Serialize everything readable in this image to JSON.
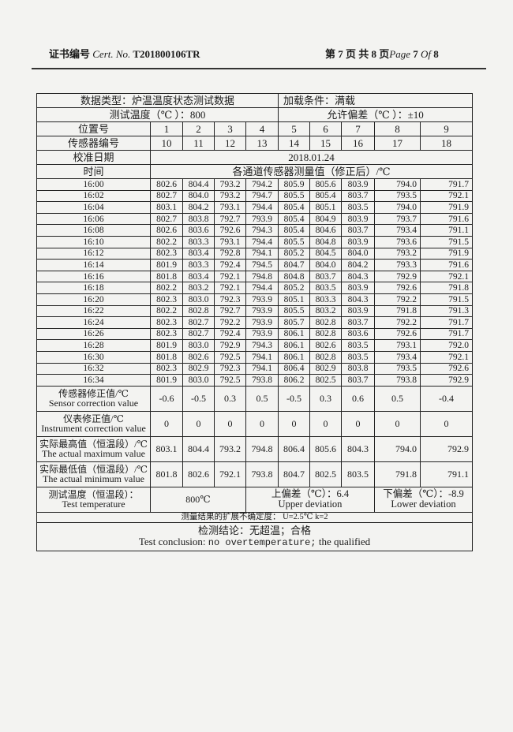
{
  "header": {
    "cert_label_cn": "证书编号",
    "cert_label_en": "Cert. No.",
    "cert_no": "T201800106TR",
    "page_info_cn_1": "第",
    "page_current": "7",
    "page_info_cn_2": "页 共",
    "page_total": "8",
    "page_info_cn_3": "页",
    "page_label_en": "Page",
    "of_label": "Of"
  },
  "table": {
    "data_type": "数据类型：炉温温度状态测试数据",
    "load_condition": "加载条件：满载",
    "test_temp": "测试温度（℃ ）：800",
    "tolerance": "允许偏差（℃ ）：±10",
    "position_label": "位置号",
    "positions": [
      "1",
      "2",
      "3",
      "4",
      "5",
      "6",
      "7",
      "8",
      "9"
    ],
    "sensor_label": "传感器编号",
    "sensors": [
      "10",
      "11",
      "12",
      "13",
      "14",
      "15",
      "16",
      "17",
      "18"
    ],
    "calib_date_label": "校准日期",
    "calib_date": "2018.01.24",
    "time_label": "时间",
    "measure_label": "各通道传感器测量值（修正后）/℃",
    "rows": [
      {
        "time": "16:00",
        "v": [
          "802.6",
          "804.4",
          "793.2",
          "794.2",
          "805.9",
          "805.6",
          "803.9",
          "794.0",
          "791.7"
        ]
      },
      {
        "time": "16:02",
        "v": [
          "802.7",
          "804.0",
          "793.2",
          "794.7",
          "805.5",
          "805.4",
          "803.7",
          "793.5",
          "792.1"
        ]
      },
      {
        "time": "16:04",
        "v": [
          "803.1",
          "804.2",
          "793.1",
          "794.4",
          "805.4",
          "805.1",
          "803.5",
          "794.0",
          "791.9"
        ]
      },
      {
        "time": "16:06",
        "v": [
          "802.7",
          "803.8",
          "792.7",
          "793.9",
          "805.4",
          "804.9",
          "803.9",
          "793.7",
          "791.6"
        ]
      },
      {
        "time": "16:08",
        "v": [
          "802.6",
          "803.6",
          "792.6",
          "794.3",
          "805.4",
          "804.6",
          "803.7",
          "793.4",
          "791.1"
        ]
      },
      {
        "time": "16:10",
        "v": [
          "802.2",
          "803.3",
          "793.1",
          "794.4",
          "805.5",
          "804.8",
          "803.9",
          "793.6",
          "791.5"
        ]
      },
      {
        "time": "16:12",
        "v": [
          "802.3",
          "803.4",
          "792.8",
          "794.1",
          "805.2",
          "804.5",
          "804.0",
          "793.2",
          "791.9"
        ]
      },
      {
        "time": "16:14",
        "v": [
          "801.9",
          "803.3",
          "792.4",
          "794.5",
          "804.7",
          "804.0",
          "804.2",
          "793.3",
          "791.6"
        ]
      },
      {
        "time": "16:16",
        "v": [
          "801.8",
          "803.4",
          "792.1",
          "794.8",
          "804.8",
          "803.7",
          "804.3",
          "792.9",
          "792.1"
        ]
      },
      {
        "time": "16:18",
        "v": [
          "802.2",
          "803.2",
          "792.1",
          "794.4",
          "805.2",
          "803.5",
          "803.9",
          "792.6",
          "791.8"
        ]
      },
      {
        "time": "16:20",
        "v": [
          "802.3",
          "803.0",
          "792.3",
          "793.9",
          "805.1",
          "803.3",
          "804.3",
          "792.2",
          "791.5"
        ]
      },
      {
        "time": "16:22",
        "v": [
          "802.2",
          "802.8",
          "792.7",
          "793.9",
          "805.5",
          "803.2",
          "803.9",
          "791.8",
          "791.3"
        ]
      },
      {
        "time": "16:24",
        "v": [
          "802.3",
          "802.7",
          "792.2",
          "793.9",
          "805.7",
          "802.8",
          "803.7",
          "792.2",
          "791.7"
        ]
      },
      {
        "time": "16:26",
        "v": [
          "802.3",
          "802.7",
          "792.4",
          "793.9",
          "806.1",
          "802.8",
          "803.6",
          "792.6",
          "791.7"
        ]
      },
      {
        "time": "16:28",
        "v": [
          "801.9",
          "803.0",
          "792.9",
          "794.3",
          "806.1",
          "802.6",
          "803.5",
          "793.1",
          "792.0"
        ]
      },
      {
        "time": "16:30",
        "v": [
          "801.8",
          "802.6",
          "792.5",
          "794.1",
          "806.1",
          "802.8",
          "803.5",
          "793.4",
          "792.1"
        ]
      },
      {
        "time": "16:32",
        "v": [
          "802.3",
          "802.9",
          "792.3",
          "794.1",
          "806.4",
          "802.9",
          "803.8",
          "793.5",
          "792.6"
        ]
      },
      {
        "time": "16:34",
        "v": [
          "801.9",
          "803.0",
          "792.5",
          "793.8",
          "806.2",
          "802.5",
          "803.7",
          "793.8",
          "792.9"
        ]
      }
    ],
    "summary": [
      {
        "cn": "传感器修正值/℃",
        "en": "Sensor correction value",
        "v": [
          "-0.6",
          "-0.5",
          "0.3",
          "0.5",
          "-0.5",
          "0.3",
          "0.6",
          "0.5",
          "-0.4"
        ]
      },
      {
        "cn": "仪表修正值/℃",
        "en": "Instrument correction value",
        "v": [
          "0",
          "0",
          "0",
          "0",
          "0",
          "0",
          "0",
          "0",
          "0"
        ]
      },
      {
        "cn": "实际最高值（恒温段）/℃",
        "en": "The actual maximum value",
        "v": [
          "803.1",
          "804.4",
          "793.2",
          "794.8",
          "806.4",
          "805.6",
          "804.3",
          "794.0",
          "792.9"
        ]
      },
      {
        "cn": "实际最低值（恒温段）/℃",
        "en": "The actual minimum value",
        "v": [
          "801.8",
          "802.6",
          "792.1",
          "793.8",
          "804.7",
          "802.5",
          "803.5",
          "791.8",
          "791.1"
        ]
      }
    ],
    "test_temp_row": {
      "label_cn": "测试温度（恒温段）：",
      "label_en": "Test temperature",
      "value": "800℃",
      "upper_cn": "上偏差（℃）：6.4",
      "upper_en": "Upper deviation",
      "lower_cn": "下偏差（℃）：-8.9",
      "lower_en": "Lower deviation"
    },
    "uncertainty": "测量结果的扩展不确定度：  U=2.5℃     k=2",
    "conclusion_cn": "检测结论：无超温；合格",
    "conclusion_en_1": "Test conclusion:",
    "conclusion_en_2": "no overtemperature;",
    "conclusion_en_3": "the qualified"
  }
}
